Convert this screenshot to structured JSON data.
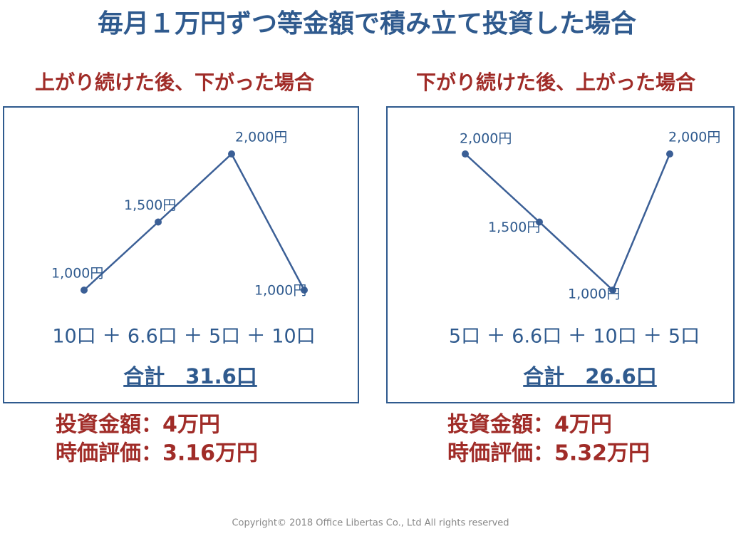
{
  "title": "毎月１万円ずつ等金額で積み立て投資した場合",
  "chart_data": [
    {
      "type": "line",
      "title": "上がり続けた後、下がった場合",
      "values": [
        1000,
        1500,
        2000,
        1000
      ],
      "value_labels": [
        "1,000円",
        "1,500円",
        "2,000円",
        "1,000円"
      ],
      "color": "#3b5f96"
    },
    {
      "type": "line",
      "title": "下がり続けた後、上がった場合",
      "values": [
        2000,
        1500,
        1000,
        2000
      ],
      "value_labels": [
        "2,000円",
        "1,500円",
        "1,000円",
        "2,000円"
      ],
      "color": "#3b5f96"
    }
  ],
  "panels": [
    {
      "formula": "10口 ＋ 6.6口 ＋ 5口 ＋ 10口",
      "total": "合計　31.6口",
      "investment": "投資金額：4万円",
      "valuation": "時価評価：3.16万円"
    },
    {
      "formula": "5口 ＋ 6.6口 ＋ 10口 ＋ 5口",
      "total": "合計　26.6口",
      "investment": "投資金額：4万円",
      "valuation": "時価評価：5.32万円"
    }
  ],
  "copyright": "Copyright©   2018 Office Libertas Co., Ltd All rights reserved"
}
